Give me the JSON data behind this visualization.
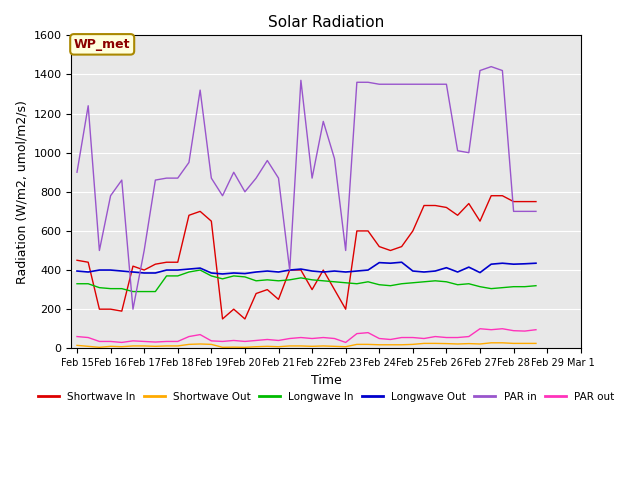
{
  "title": "Solar Radiation",
  "xlabel": "Time",
  "ylabel": "Radiation (W/m2, umol/m2/s)",
  "ylim": [
    0,
    1600
  ],
  "yticks": [
    0,
    200,
    400,
    600,
    800,
    1000,
    1200,
    1400,
    1600
  ],
  "background_color": "#e8e8e8",
  "annotation_text": "WP_met",
  "annotation_bbox": {
    "facecolor": "#ffffdd",
    "edgecolor": "#aa8800",
    "boxstyle": "round,pad=0.3"
  },
  "legend": [
    {
      "label": "Shortwave In",
      "color": "#dd0000"
    },
    {
      "label": "Shortwave Out",
      "color": "#ffaa00"
    },
    {
      "label": "Longwave In",
      "color": "#00bb00"
    },
    {
      "label": "Longwave Out",
      "color": "#0000cc"
    },
    {
      "label": "PAR in",
      "color": "#9955cc"
    },
    {
      "label": "PAR out",
      "color": "#ff33bb"
    }
  ],
  "x_tick_positions": [
    0,
    3,
    6,
    9,
    12,
    15,
    18,
    21,
    24,
    27,
    30,
    33,
    36,
    39,
    42,
    45
  ],
  "x_labels": [
    "Feb 15",
    "Feb 16",
    "Feb 17",
    "Feb 18",
    "Feb 19",
    "Feb 20",
    "Feb 21",
    "Feb 22",
    "Feb 23",
    "Feb 24",
    "Feb 25",
    "Feb 26",
    "Feb 27",
    "Feb 28",
    "Feb 29",
    "Mar 1"
  ],
  "shortwave_in": [
    450,
    440,
    200,
    200,
    190,
    420,
    400,
    430,
    440,
    440,
    680,
    700,
    650,
    150,
    200,
    150,
    280,
    300,
    250,
    400,
    400,
    300,
    400,
    300,
    200,
    600,
    600,
    520,
    500,
    520,
    600,
    730,
    730,
    720,
    680,
    740,
    650,
    780,
    780,
    750,
    750,
    750
  ],
  "shortwave_out": [
    15,
    10,
    5,
    10,
    8,
    12,
    12,
    10,
    12,
    12,
    20,
    22,
    20,
    5,
    6,
    5,
    8,
    10,
    8,
    12,
    12,
    10,
    12,
    10,
    8,
    20,
    20,
    18,
    18,
    18,
    20,
    25,
    25,
    24,
    22,
    24,
    22,
    28,
    28,
    25,
    25,
    25
  ],
  "longwave_in": [
    330,
    330,
    310,
    305,
    305,
    290,
    290,
    290,
    370,
    370,
    390,
    400,
    370,
    355,
    370,
    365,
    345,
    350,
    345,
    350,
    360,
    350,
    345,
    340,
    335,
    330,
    340,
    325,
    320,
    330,
    335,
    340,
    345,
    340,
    325,
    330,
    315,
    305,
    310,
    315,
    315,
    320
  ],
  "longwave_out": [
    395,
    390,
    400,
    400,
    395,
    390,
    385,
    385,
    400,
    400,
    405,
    410,
    385,
    380,
    385,
    382,
    390,
    395,
    390,
    400,
    405,
    395,
    390,
    395,
    390,
    395,
    400,
    438,
    435,
    440,
    395,
    390,
    395,
    412,
    390,
    415,
    387,
    430,
    435,
    430,
    432,
    435
  ],
  "par_in": [
    900,
    1240,
    500,
    780,
    860,
    200,
    500,
    860,
    870,
    870,
    950,
    1320,
    870,
    780,
    900,
    800,
    870,
    960,
    870,
    400,
    1370,
    870,
    1160,
    970,
    500,
    1360,
    1360,
    1350,
    1350,
    1350,
    1350,
    1350,
    1350,
    1350,
    1010,
    1000,
    1420,
    1440,
    1420,
    700,
    700,
    700
  ],
  "par_out": [
    60,
    55,
    35,
    35,
    30,
    38,
    35,
    32,
    35,
    35,
    60,
    70,
    38,
    35,
    40,
    35,
    40,
    45,
    40,
    50,
    55,
    50,
    55,
    50,
    30,
    75,
    80,
    50,
    45,
    55,
    55,
    50,
    60,
    55,
    55,
    60,
    100,
    95,
    100,
    90,
    88,
    95
  ]
}
